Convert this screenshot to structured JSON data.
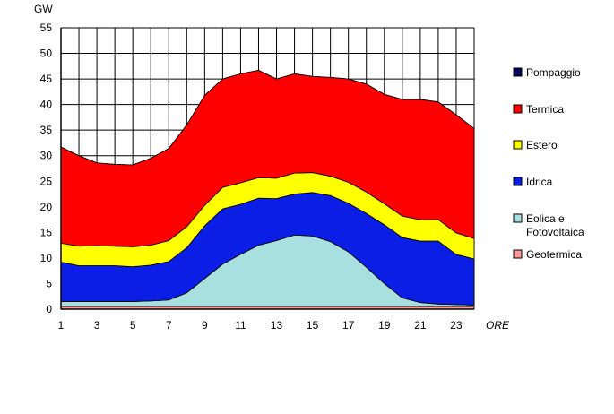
{
  "chart_data": {
    "type": "area",
    "stacked": true,
    "title": "",
    "ylabel": "GW",
    "xlabel": "ORE",
    "ylim": [
      0,
      55
    ],
    "y_ticks": [
      0,
      5,
      10,
      15,
      20,
      25,
      30,
      35,
      40,
      45,
      50,
      55
    ],
    "xlim": [
      1,
      24
    ],
    "x_ticks": [
      1,
      3,
      5,
      7,
      9,
      11,
      13,
      15,
      17,
      19,
      21,
      23
    ],
    "grid": true,
    "legend_position": "right",
    "x": [
      1,
      2,
      3,
      4,
      5,
      6,
      7,
      8,
      9,
      10,
      11,
      12,
      13,
      14,
      15,
      16,
      17,
      18,
      19,
      20,
      21,
      22,
      23,
      24
    ],
    "series": [
      {
        "name": "Geotermica",
        "color": "#ff9999",
        "values": [
          0.5,
          0.5,
          0.5,
          0.5,
          0.5,
          0.5,
          0.5,
          0.5,
          0.5,
          0.5,
          0.5,
          0.5,
          0.5,
          0.5,
          0.5,
          0.5,
          0.5,
          0.5,
          0.5,
          0.5,
          0.5,
          0.5,
          0.5,
          0.5
        ]
      },
      {
        "name": "Eolica e Fotovoltaica",
        "color": "#a8e0e0",
        "values": [
          1.0,
          1.0,
          1.0,
          1.0,
          1.0,
          1.1,
          1.3,
          2.7,
          5.5,
          8.3,
          10.2,
          12.0,
          12.9,
          14.0,
          13.8,
          12.7,
          10.7,
          7.7,
          4.5,
          1.7,
          0.8,
          0.5,
          0.4,
          0.3
        ]
      },
      {
        "name": "Idrica",
        "color": "#0a1ee6",
        "values": [
          7.7,
          7.0,
          7.0,
          7.0,
          6.8,
          7.0,
          7.5,
          8.8,
          10.3,
          10.8,
          9.8,
          9.2,
          8.2,
          8.0,
          8.5,
          9.0,
          9.5,
          10.5,
          11.5,
          11.8,
          12.0,
          12.3,
          9.8,
          9.0
        ]
      },
      {
        "name": "Estero",
        "color": "#ffff00",
        "values": [
          3.7,
          3.8,
          3.9,
          3.8,
          3.9,
          3.9,
          4.1,
          4.1,
          4.0,
          4.2,
          4.2,
          4.0,
          4.0,
          4.1,
          3.9,
          3.8,
          4.1,
          4.2,
          4.1,
          4.2,
          4.2,
          4.2,
          4.2,
          4.0
        ]
      },
      {
        "name": "Termica",
        "color": "#ff0000",
        "values": [
          18.8,
          17.7,
          16.2,
          16.0,
          16.0,
          17.0,
          18.0,
          19.9,
          21.5,
          21.2,
          21.3,
          21.0,
          19.4,
          19.4,
          18.8,
          19.3,
          20.2,
          21.1,
          21.4,
          22.8,
          23.5,
          23.0,
          23.1,
          21.5
        ]
      },
      {
        "name": "Pompaggio",
        "color": "#00005e",
        "values": [
          0,
          0,
          0,
          0,
          0,
          0,
          0,
          0,
          0,
          0,
          0,
          0,
          0,
          0,
          0,
          0,
          0,
          0,
          0,
          0,
          0,
          0,
          0,
          0
        ]
      }
    ],
    "legend_order": [
      "Pompaggio",
      "Termica",
      "Estero",
      "Idrica",
      "Eolica e Fotovoltaica",
      "Geotermica"
    ],
    "legend_text": [
      [
        "Pompaggio"
      ],
      [
        "Termica"
      ],
      [
        "Estero"
      ],
      [
        "Idrica"
      ],
      [
        "Eolica e",
        "Fotovoltaica"
      ],
      [
        "Geotermica"
      ]
    ]
  }
}
